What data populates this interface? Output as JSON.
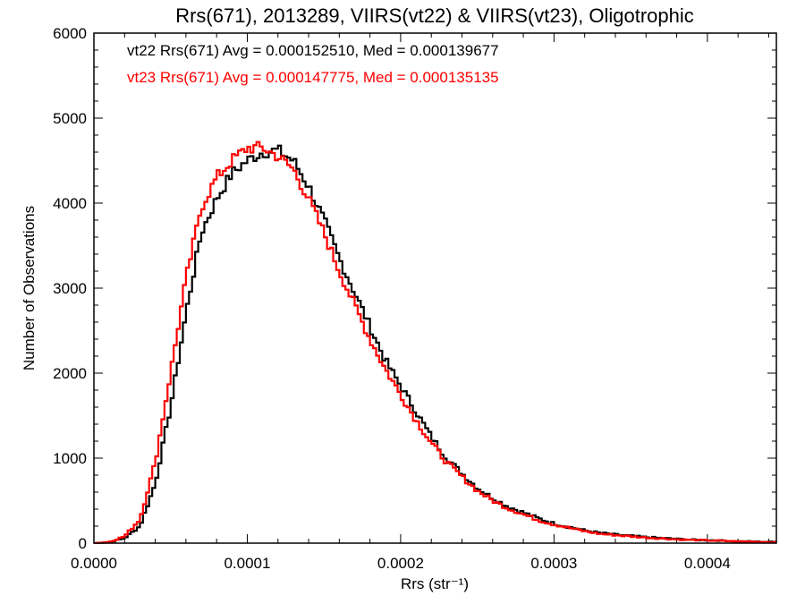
{
  "chart_data": {
    "type": "histogram",
    "title": "Rrs(671), 2013289, VIIRS(vt22) & VIIRS(vt23), Oligotrophic",
    "xlabel": "Rrs (str⁻¹)",
    "ylabel": "Number of Observations",
    "xlim": [
      0,
      0.000445
    ],
    "ylim": [
      0,
      6000
    ],
    "xticks": [
      0,
      0.0001,
      0.0002,
      0.0003,
      0.0004
    ],
    "xtick_labels": [
      "0.0000",
      "0.0001",
      "0.0002",
      "0.0003",
      "0.0004"
    ],
    "yticks": [
      0,
      1000,
      2000,
      3000,
      4000,
      5000,
      6000
    ],
    "ytick_labels": [
      "0",
      "1000",
      "2000",
      "3000",
      "4000",
      "5000",
      "6000"
    ],
    "annotations": [
      {
        "text": "vt22 Rrs(671) Avg = 0.000152510, Med = 0.000139677",
        "color": "#000000"
      },
      {
        "text": "vt23 Rrs(671) Avg = 0.000147775, Med = 0.000135135",
        "color": "#ff0000"
      }
    ],
    "series": [
      {
        "name": "vt22",
        "color": "#000000",
        "x": [
          0.0,
          1e-05,
          2e-05,
          3e-05,
          4e-05,
          5e-05,
          6e-05,
          7e-05,
          8e-05,
          9e-05,
          0.0001,
          0.00011,
          0.00012,
          0.00013,
          0.00014,
          0.00015,
          0.00016,
          0.00017,
          0.00018,
          0.00019,
          0.0002,
          0.00021,
          0.00022,
          0.00023,
          0.00024,
          0.00025,
          0.00026,
          0.00027,
          0.00028,
          0.00029,
          0.0003,
          0.00031,
          0.00032,
          0.00033,
          0.00034,
          0.00035,
          0.00036,
          0.00037,
          0.00038,
          0.00039,
          0.0004,
          0.00041,
          0.00042,
          0.00043,
          0.00044,
          0.000445
        ],
        "y": [
          0,
          10,
          60,
          200,
          700,
          1600,
          2700,
          3650,
          4050,
          4350,
          4500,
          4600,
          4620,
          4500,
          4200,
          3800,
          3350,
          2950,
          2550,
          2150,
          1850,
          1550,
          1250,
          1000,
          820,
          650,
          530,
          430,
          360,
          290,
          230,
          190,
          150,
          120,
          100,
          85,
          70,
          60,
          50,
          40,
          35,
          30,
          20,
          20,
          15,
          15
        ]
      },
      {
        "name": "vt23",
        "color": "#ff0000",
        "x": [
          0.0,
          1e-05,
          2e-05,
          3e-05,
          4e-05,
          5e-05,
          6e-05,
          7e-05,
          8e-05,
          9e-05,
          0.0001,
          0.00011,
          0.00012,
          0.00013,
          0.00014,
          0.00015,
          0.00016,
          0.00017,
          0.00018,
          0.00019,
          0.0002,
          0.00021,
          0.00022,
          0.00023,
          0.00024,
          0.00025,
          0.00026,
          0.00027,
          0.00028,
          0.00029,
          0.0003,
          0.00031,
          0.00032,
          0.00033,
          0.00034,
          0.00035,
          0.00036,
          0.00037,
          0.00038,
          0.00039,
          0.0004,
          0.00041,
          0.00042,
          0.00043,
          0.00044,
          0.000445
        ],
        "y": [
          0,
          15,
          80,
          280,
          950,
          2000,
          3100,
          3950,
          4300,
          4500,
          4650,
          4650,
          4550,
          4400,
          4050,
          3650,
          3200,
          2800,
          2400,
          2050,
          1750,
          1450,
          1180,
          950,
          780,
          620,
          500,
          410,
          340,
          270,
          220,
          180,
          140,
          110,
          95,
          80,
          65,
          55,
          45,
          38,
          32,
          28,
          20,
          18,
          12,
          12
        ]
      }
    ]
  }
}
